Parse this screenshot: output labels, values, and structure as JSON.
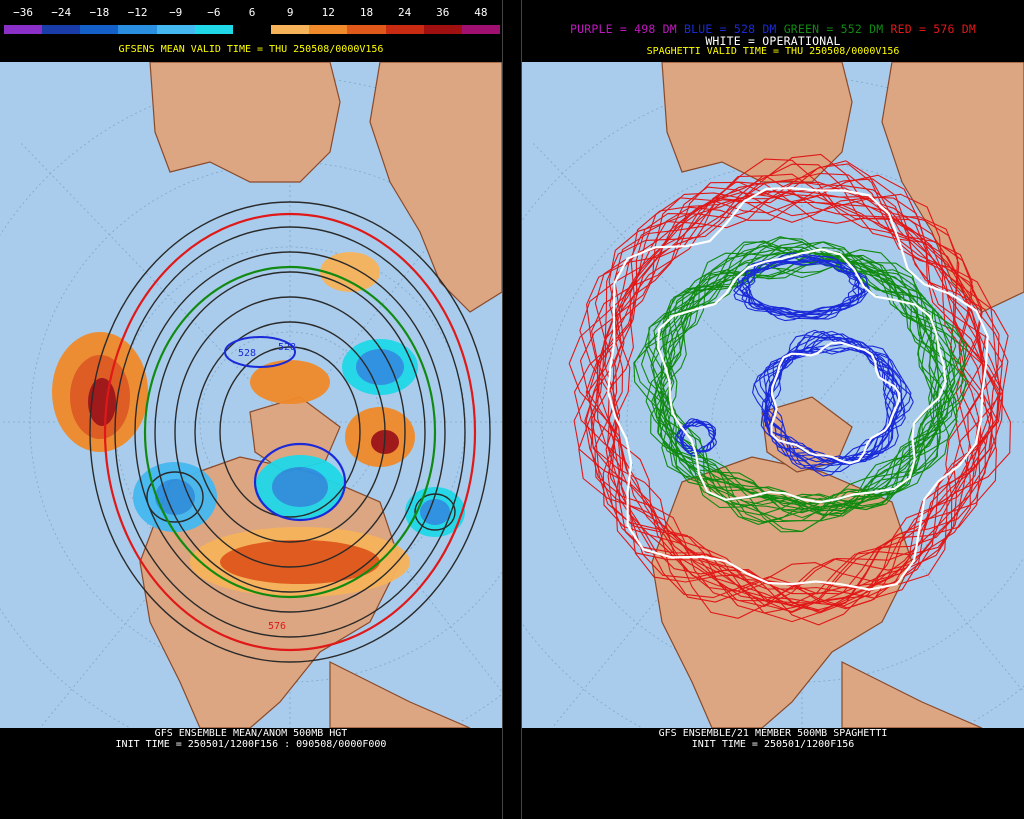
{
  "left": {
    "scale_values": [
      "−36",
      "−24",
      "−18",
      "−12",
      "−9",
      "−6",
      "6",
      "9",
      "12",
      "18",
      "24",
      "36",
      "48"
    ],
    "scale_colors": [
      "#8b2fc9",
      "#1a3ca8",
      "#1560c8",
      "#2a8fe0",
      "#44b8f0",
      "#20d8e8",
      "#000000",
      "#f7b35a",
      "#f08a2a",
      "#e0581a",
      "#c82a12",
      "#a01010",
      "#a01070"
    ],
    "subtitle": "GFSENS MEAN VALID TIME = THU 250508/0000V156",
    "contour_labels": [
      "528",
      "528",
      "576"
    ],
    "bottom_line1": "GFS ENSEMBLE MEAN/ANOM 500MB HGT",
    "bottom_line2": "INIT TIME = 250501/1200F156 : 090508/0000F000"
  },
  "right": {
    "legend": {
      "purple": "PURPLE = 498 DM",
      "blue": "BLUE = 528 DM",
      "green": "GREEN = 552 DM",
      "red": "RED = 576 DM",
      "white": "WHITE = OPERATIONAL"
    },
    "legend_colors": {
      "purple": "#c018c0",
      "blue": "#1a2ad8",
      "green": "#118a11",
      "red": "#e01818",
      "white": "#ffffff"
    },
    "subtitle": "SPAGHETTI VALID TIME = THU 250508/0000V156",
    "bottom_line1": "GFS ENSEMBLE/21 MEMBER 500MB SPAGHETTI",
    "bottom_line2": "INIT TIME = 250501/1200F156"
  },
  "colors": {
    "ocean": "#a9ccec",
    "land": "#dca682",
    "coast": "#8a4a2a",
    "background": "#000000",
    "title_yellow": "#ffff00"
  }
}
